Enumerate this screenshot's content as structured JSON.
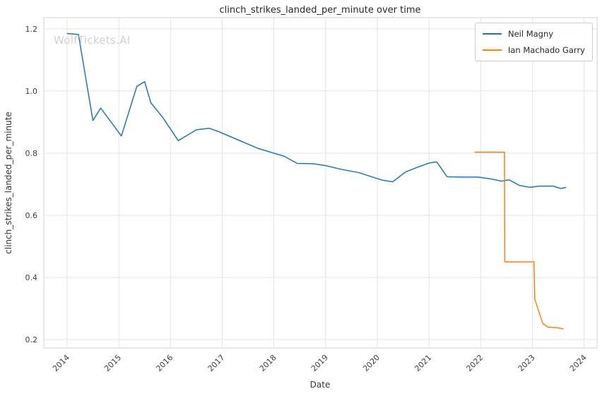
{
  "watermark": "WolfTickets.AI",
  "chart_data": {
    "type": "line",
    "title": "clinch_strikes_landed_per_minute over time",
    "xlabel": "Date",
    "ylabel": "clinch_strikes_landed_per_minute",
    "xlim": [
      2013.55,
      2024.25
    ],
    "ylim": [
      0.173,
      1.236
    ],
    "xticks": [
      2014,
      2015,
      2016,
      2017,
      2018,
      2019,
      2020,
      2021,
      2022,
      2023,
      2024
    ],
    "yticks": [
      0.2,
      0.4,
      0.6,
      0.8,
      1.0,
      1.2
    ],
    "grid": true,
    "grid_color": "#e3e3e3",
    "spine_color": "#d0d0d0",
    "legend_position": "upper right",
    "series": [
      {
        "name": "Neil Magny",
        "color": "#1f77b4",
        "x": [
          2014.0,
          2014.22,
          2014.5,
          2014.65,
          2015.05,
          2015.35,
          2015.5,
          2015.62,
          2015.85,
          2016.15,
          2016.5,
          2016.75,
          2016.95,
          2017.3,
          2017.7,
          2018.0,
          2018.2,
          2018.45,
          2018.75,
          2019.0,
          2019.3,
          2019.65,
          2020.1,
          2020.3,
          2020.55,
          2020.8,
          2021.0,
          2021.15,
          2021.35,
          2021.65,
          2021.95,
          2022.2,
          2022.4,
          2022.55,
          2022.75,
          2022.95,
          2023.15,
          2023.4,
          2023.55,
          2023.65
        ],
        "y": [
          1.185,
          1.182,
          0.905,
          0.945,
          0.855,
          1.015,
          1.03,
          0.962,
          0.915,
          0.84,
          0.875,
          0.88,
          0.868,
          0.843,
          0.815,
          0.8,
          0.79,
          0.767,
          0.766,
          0.76,
          0.748,
          0.737,
          0.713,
          0.708,
          0.74,
          0.756,
          0.768,
          0.772,
          0.724,
          0.723,
          0.723,
          0.717,
          0.71,
          0.714,
          0.696,
          0.69,
          0.694,
          0.694,
          0.686,
          0.69
        ]
      },
      {
        "name": "Ian Machado Garry",
        "color": "#ff7f0e",
        "x": [
          2021.88,
          2022.46,
          2022.465,
          2022.98,
          2023.03,
          2023.045,
          2023.2,
          2023.3,
          2023.5,
          2023.6
        ],
        "y": [
          0.803,
          0.803,
          0.45,
          0.45,
          0.45,
          0.33,
          0.252,
          0.24,
          0.238,
          0.234
        ]
      }
    ]
  }
}
